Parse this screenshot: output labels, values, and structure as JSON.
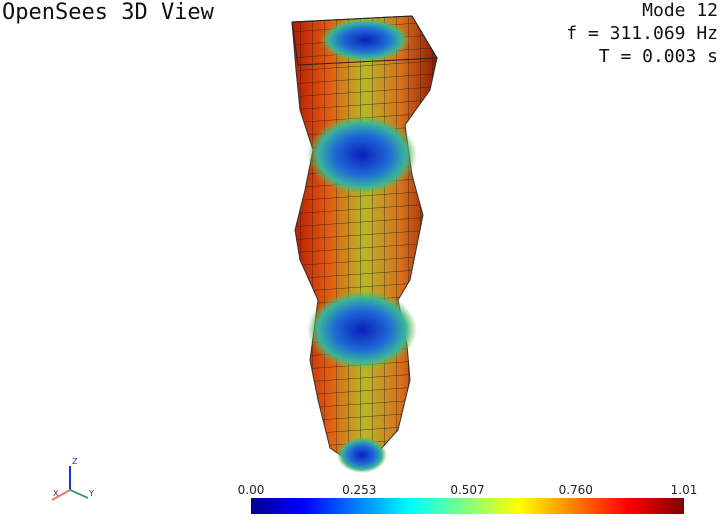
{
  "header": {
    "title": "OpenSees 3D View",
    "mode": "Mode 12",
    "frequency": "f = 311.069 Hz",
    "period": "T = 0.003 s"
  },
  "axes_triad": {
    "z": "Z",
    "x": "X",
    "y": "Y"
  },
  "colorbar": {
    "labels": [
      "0.00",
      "0.253",
      "0.507",
      "0.760",
      "1.01"
    ]
  }
}
